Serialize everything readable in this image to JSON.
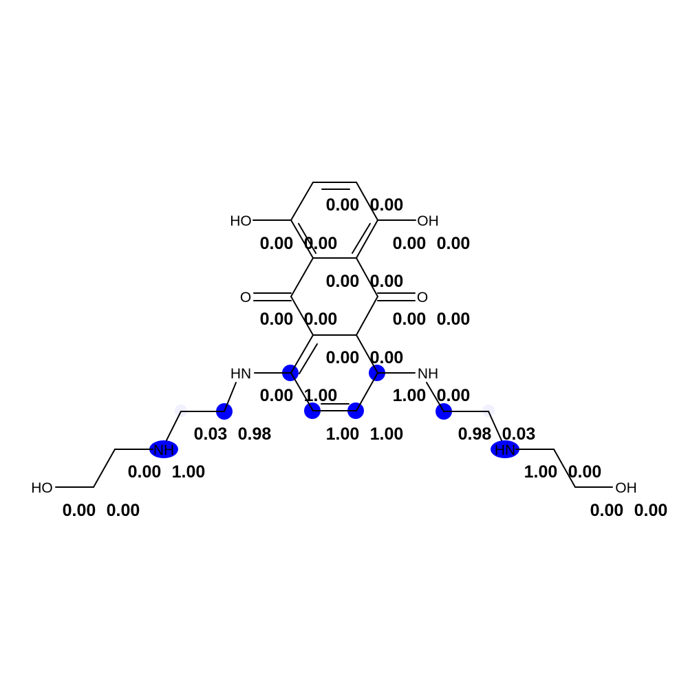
{
  "highlight_color": "#0000ff",
  "atom_labels": {
    "ho_top_left": "HO",
    "oh_top_right": "OH",
    "o_left": "O",
    "o_right": "O",
    "hn_left": "HN",
    "nh_right": "NH",
    "nh_lower_left": "NH",
    "hn_lower_right": "HN",
    "ho_bottom_left": "HO",
    "oh_bottom_right": "OH"
  },
  "scores": {
    "row1": [
      "0.00",
      "0.00"
    ],
    "row2_left": [
      "0.00",
      "0.00"
    ],
    "row2_right": [
      "0.00",
      "0.00"
    ],
    "row3": [
      "0.00",
      "0.00"
    ],
    "row4_left": [
      "0.00",
      "0.00"
    ],
    "row4_right": [
      "0.00",
      "0.00"
    ],
    "row5": [
      "0.00",
      "0.00"
    ],
    "row6_left": [
      "0.00",
      "1.00"
    ],
    "row6_right": [
      "1.00",
      "0.00"
    ],
    "row7_left": [
      "0.03",
      "0.98"
    ],
    "row7_mid": [
      "1.00",
      "1.00"
    ],
    "row7_right": [
      "0.98",
      "0.03"
    ],
    "row8_left": [
      "0.00",
      "1.00"
    ],
    "row8_right": [
      "1.00",
      "0.00"
    ],
    "row9_left": [
      "0.00",
      "0.00"
    ],
    "row9_right": [
      "0.00",
      "0.00"
    ]
  }
}
